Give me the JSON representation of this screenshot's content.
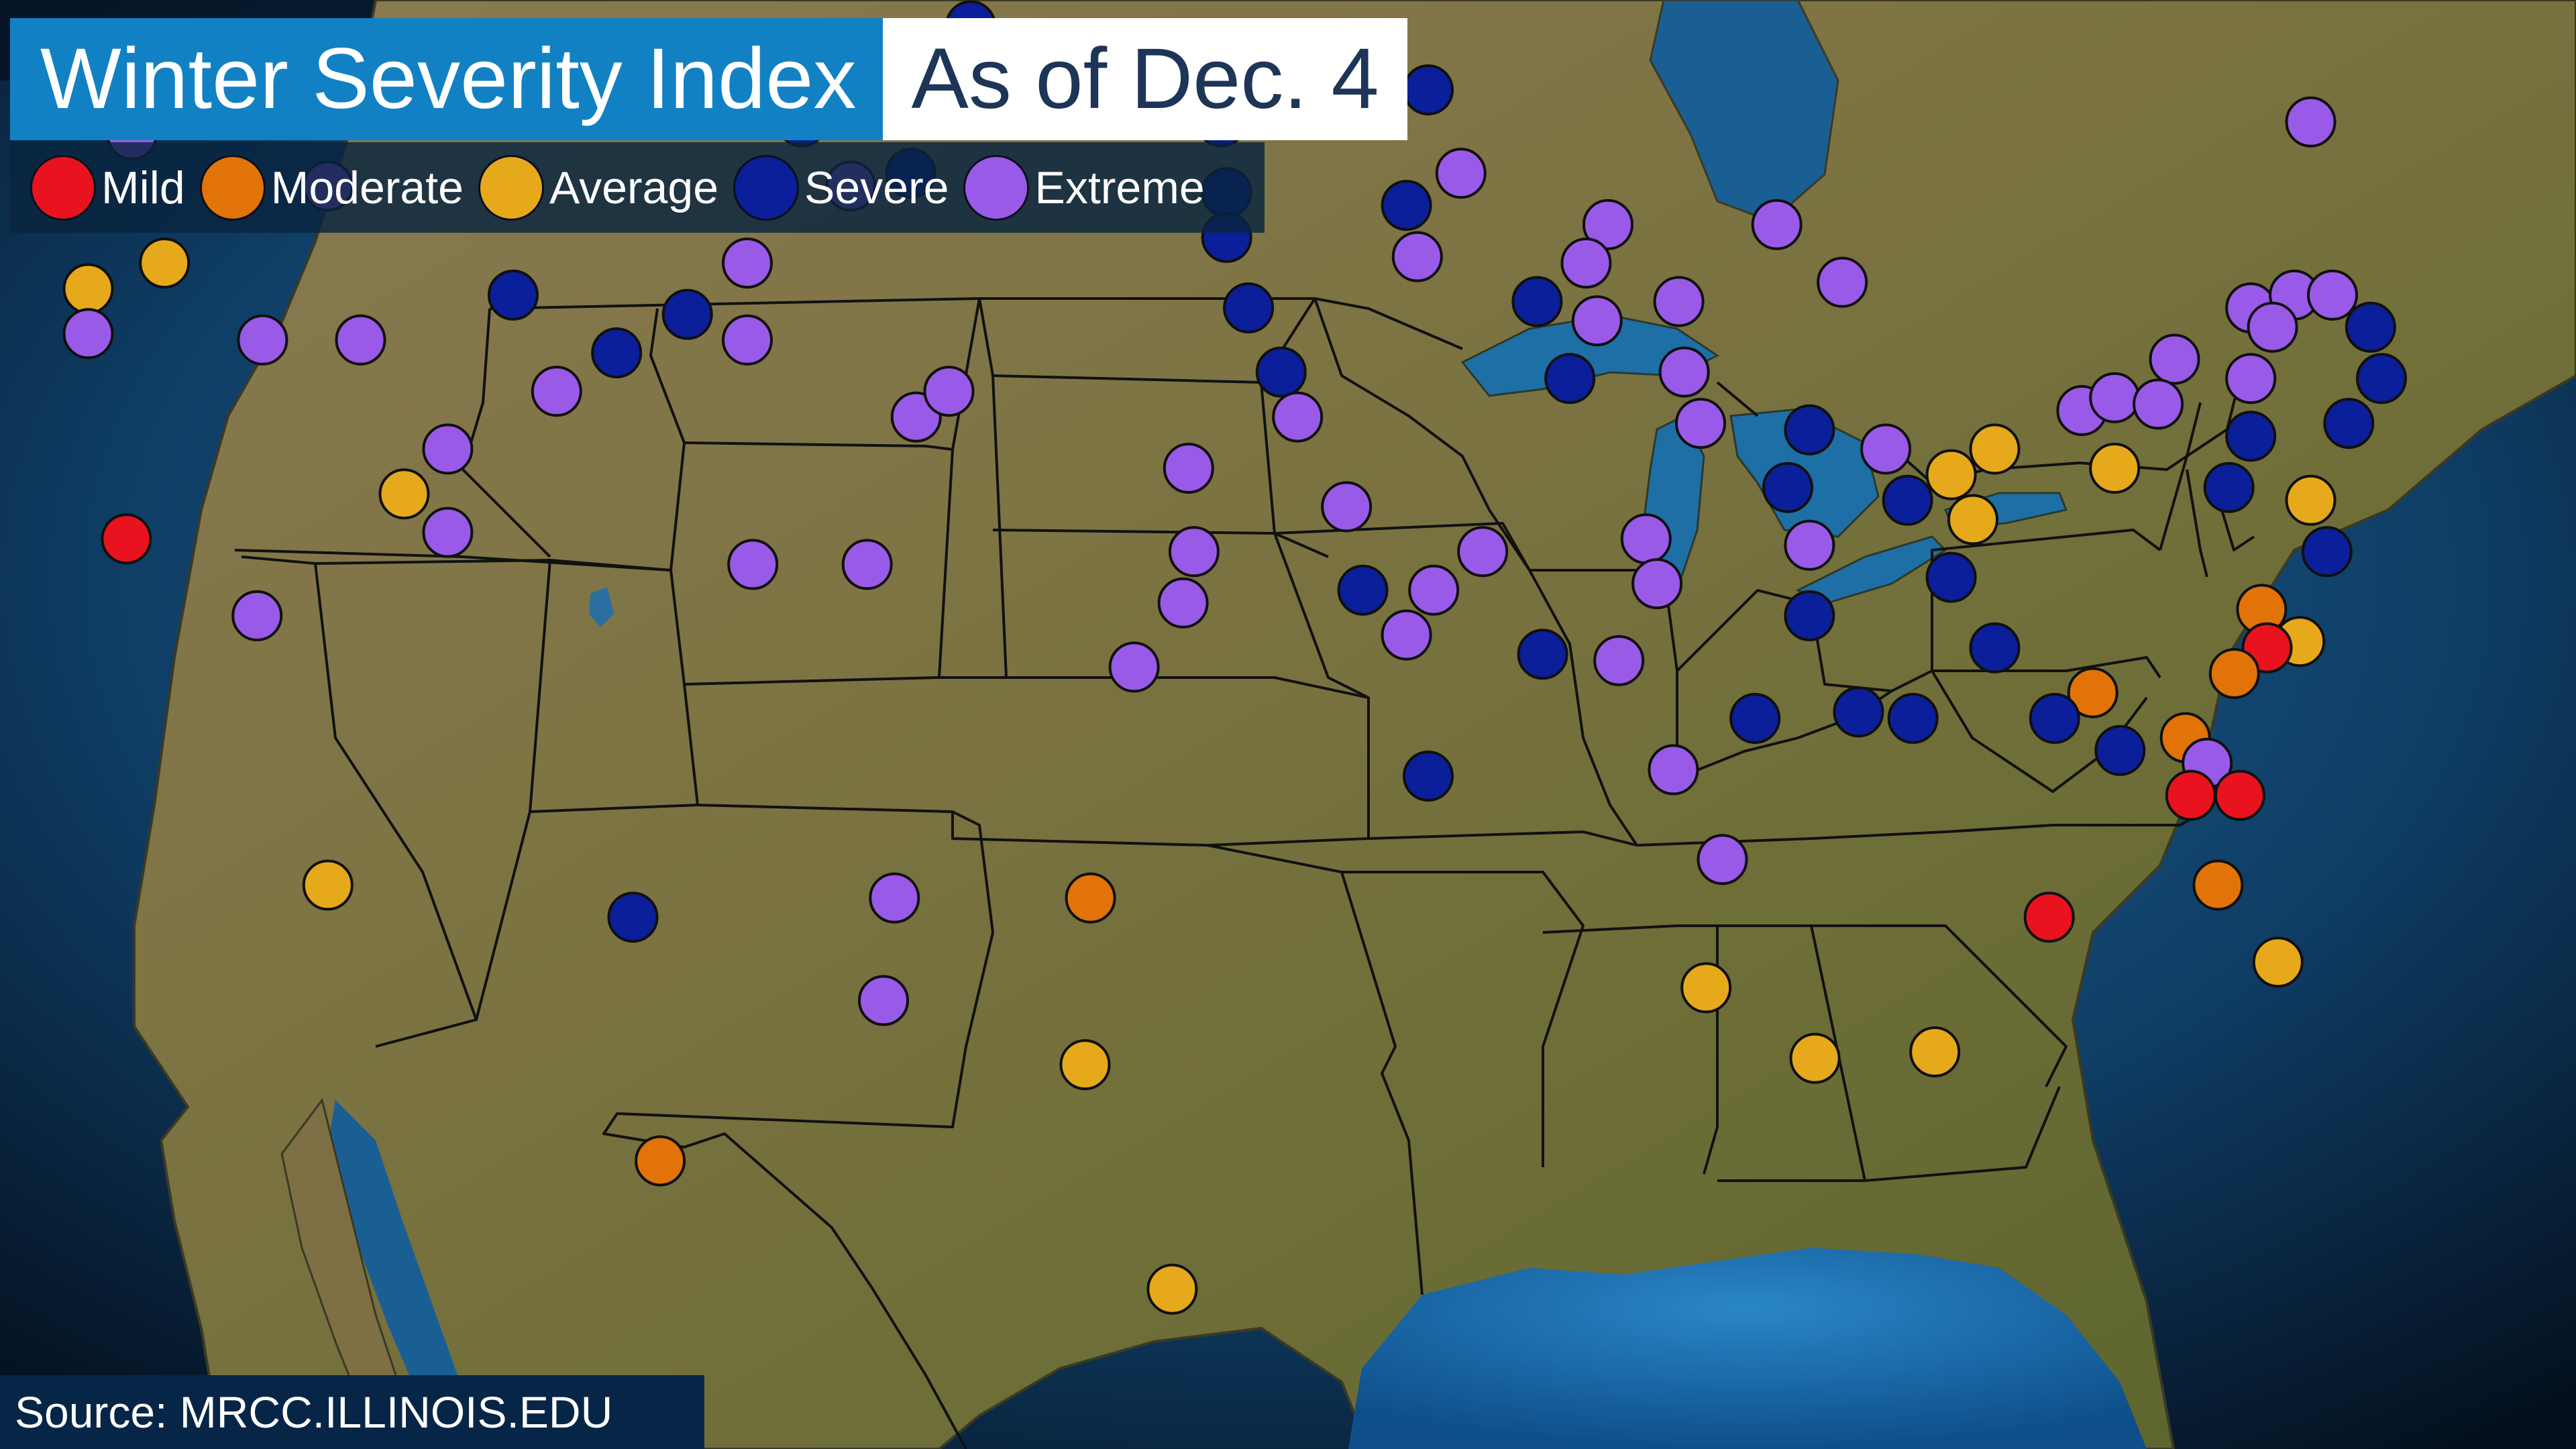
{
  "title": "Winter Severity Index",
  "date_label": "As of Dec. 4",
  "source": "Source: MRCC.ILLINOIS.EDU",
  "categories": [
    {
      "key": "mild",
      "label": "Mild",
      "color": "#e8131f"
    },
    {
      "key": "moderate",
      "label": "Moderate",
      "color": "#e27308"
    },
    {
      "key": "average",
      "label": "Average",
      "color": "#e6a91c"
    },
    {
      "key": "severe",
      "label": "Severe",
      "color": "#0b1f9a"
    },
    {
      "key": "extreme",
      "label": "Extreme",
      "color": "#9a5ae8"
    }
  ],
  "stations": [
    {
      "lon": -122.5,
      "lat": 48.6,
      "severity": "average"
    },
    {
      "lon": -123.1,
      "lat": 47.8,
      "severity": "average"
    },
    {
      "lon": -122.6,
      "lat": 47.4,
      "severity": "moderate"
    },
    {
      "lon": -121.8,
      "lat": 47.0,
      "severity": "average"
    },
    {
      "lon": -121.9,
      "lat": 46.8,
      "severity": "severe"
    },
    {
      "lon": -123.7,
      "lat": 46.2,
      "severity": "severe"
    },
    {
      "lon": -119.8,
      "lat": 48.0,
      "severity": "extreme"
    },
    {
      "lon": -119.5,
      "lat": 45.1,
      "severity": "severe"
    },
    {
      "lon": -117.4,
      "lat": 44.9,
      "severity": "average"
    },
    {
      "lon": -117.4,
      "lat": 44.2,
      "severity": "extreme"
    },
    {
      "lon": -116.0,
      "lat": 45.3,
      "severity": "average"
    },
    {
      "lon": -116.6,
      "lat": 47.3,
      "severity": "extreme"
    },
    {
      "lon": -114.0,
      "lat": 48.3,
      "severity": "extreme"
    },
    {
      "lon": -113.0,
      "lat": 46.5,
      "severity": "extreme"
    },
    {
      "lon": -109.8,
      "lat": 48.6,
      "severity": "severe"
    },
    {
      "lon": -114.2,
      "lat": 44.1,
      "severity": "extreme"
    },
    {
      "lon": -112.4,
      "lat": 44.1,
      "severity": "extreme"
    },
    {
      "lon": -109.6,
      "lat": 44.8,
      "severity": "severe"
    },
    {
      "lon": -108.8,
      "lat": 43.3,
      "severity": "extreme"
    },
    {
      "lon": -110.8,
      "lat": 42.4,
      "severity": "extreme"
    },
    {
      "lon": -110.8,
      "lat": 41.1,
      "severity": "extreme"
    },
    {
      "lon": -111.6,
      "lat": 41.7,
      "severity": "average"
    },
    {
      "lon": -116.7,
      "lat": 41.0,
      "severity": "mild"
    },
    {
      "lon": -121.2,
      "lat": 40.3,
      "severity": "average"
    },
    {
      "lon": -114.3,
      "lat": 39.8,
      "severity": "extreme"
    },
    {
      "lon": -107.7,
      "lat": 43.9,
      "severity": "severe"
    },
    {
      "lon": -106.4,
      "lat": 44.5,
      "severity": "severe"
    },
    {
      "lon": -104.3,
      "lat": 47.5,
      "severity": "severe"
    },
    {
      "lon": -103.4,
      "lat": 46.5,
      "severity": "extreme"
    },
    {
      "lon": -105.3,
      "lat": 45.3,
      "severity": "extreme"
    },
    {
      "lon": -105.3,
      "lat": 44.1,
      "severity": "extreme"
    },
    {
      "lon": -102.3,
      "lat": 46.7,
      "severity": "severe"
    },
    {
      "lon": -101.2,
      "lat": 49.0,
      "severity": "severe"
    },
    {
      "lon": -101.0,
      "lat": 48.3,
      "severity": "severe"
    },
    {
      "lon": -102.2,
      "lat": 42.9,
      "severity": "extreme"
    },
    {
      "lon": -101.6,
      "lat": 43.3,
      "severity": "extreme"
    },
    {
      "lon": -105.2,
      "lat": 40.6,
      "severity": "extreme"
    },
    {
      "lon": -103.1,
      "lat": 40.6,
      "severity": "extreme"
    },
    {
      "lon": -97.2,
      "lat": 42.1,
      "severity": "extreme"
    },
    {
      "lon": -97.1,
      "lat": 40.8,
      "severity": "extreme"
    },
    {
      "lon": -97.3,
      "lat": 40.0,
      "severity": "extreme"
    },
    {
      "lon": -98.2,
      "lat": 39.0,
      "severity": "extreme"
    },
    {
      "lon": -96.6,
      "lat": 47.5,
      "severity": "severe"
    },
    {
      "lon": -96.5,
      "lat": 46.4,
      "severity": "severe"
    },
    {
      "lon": -96.5,
      "lat": 45.7,
      "severity": "severe"
    },
    {
      "lon": -96.1,
      "lat": 44.6,
      "severity": "severe"
    },
    {
      "lon": -95.5,
      "lat": 43.6,
      "severity": "severe"
    },
    {
      "lon": -95.2,
      "lat": 42.9,
      "severity": "extreme"
    },
    {
      "lon": -94.3,
      "lat": 41.5,
      "severity": "extreme"
    },
    {
      "lon": -94.0,
      "lat": 40.2,
      "severity": "severe"
    },
    {
      "lon": -92.8,
      "lat": 48.0,
      "severity": "severe"
    },
    {
      "lon": -93.2,
      "lat": 46.2,
      "severity": "severe"
    },
    {
      "lon": -93.0,
      "lat": 45.4,
      "severity": "extreme"
    },
    {
      "lon": -92.2,
      "lat": 46.7,
      "severity": "extreme"
    },
    {
      "lon": -90.8,
      "lat": 44.7,
      "severity": "severe"
    },
    {
      "lon": -90.2,
      "lat": 43.5,
      "severity": "severe"
    },
    {
      "lon": -89.5,
      "lat": 45.9,
      "severity": "extreme"
    },
    {
      "lon": -89.9,
      "lat": 45.3,
      "severity": "extreme"
    },
    {
      "lon": -89.7,
      "lat": 44.4,
      "severity": "extreme"
    },
    {
      "lon": -88.2,
      "lat": 44.7,
      "severity": "extreme"
    },
    {
      "lon": -88.1,
      "lat": 43.6,
      "severity": "extreme"
    },
    {
      "lon": -87.8,
      "lat": 42.8,
      "severity": "extreme"
    },
    {
      "lon": -86.4,
      "lat": 45.9,
      "severity": "extreme"
    },
    {
      "lon": -85.2,
      "lat": 45.0,
      "severity": "extreme"
    },
    {
      "lon": -85.8,
      "lat": 42.7,
      "severity": "severe"
    },
    {
      "lon": -86.2,
      "lat": 41.8,
      "severity": "severe"
    },
    {
      "lon": -85.8,
      "lat": 40.9,
      "severity": "extreme"
    },
    {
      "lon": -84.4,
      "lat": 42.4,
      "severity": "extreme"
    },
    {
      "lon": -84.0,
      "lat": 41.6,
      "severity": "severe"
    },
    {
      "lon": -88.8,
      "lat": 41.0,
      "severity": "extreme"
    },
    {
      "lon": -88.6,
      "lat": 40.3,
      "severity": "extreme"
    },
    {
      "lon": -89.3,
      "lat": 39.1,
      "severity": "extreme"
    },
    {
      "lon": -90.7,
      "lat": 39.2,
      "severity": "severe"
    },
    {
      "lon": -85.8,
      "lat": 39.8,
      "severity": "severe"
    },
    {
      "lon": -86.8,
      "lat": 38.2,
      "severity": "severe"
    },
    {
      "lon": -84.9,
      "lat": 38.3,
      "severity": "severe"
    },
    {
      "lon": -83.9,
      "lat": 38.2,
      "severity": "severe"
    },
    {
      "lon": -88.3,
      "lat": 37.4,
      "severity": "extreme"
    },
    {
      "lon": -87.4,
      "lat": 36.0,
      "severity": "extreme"
    },
    {
      "lon": -92.8,
      "lat": 37.3,
      "severity": "severe"
    },
    {
      "lon": -93.2,
      "lat": 39.5,
      "severity": "extreme"
    },
    {
      "lon": -92.7,
      "lat": 40.2,
      "severity": "extreme"
    },
    {
      "lon": -91.8,
      "lat": 40.8,
      "severity": "extreme"
    },
    {
      "lon": -83.2,
      "lat": 42.0,
      "severity": "average"
    },
    {
      "lon": -82.4,
      "lat": 42.4,
      "severity": "average"
    },
    {
      "lon": -82.8,
      "lat": 41.3,
      "severity": "average"
    },
    {
      "lon": -83.2,
      "lat": 40.4,
      "severity": "severe"
    },
    {
      "lon": -80.8,
      "lat": 43.0,
      "severity": "extreme"
    },
    {
      "lon": -80.2,
      "lat": 43.2,
      "severity": "extreme"
    },
    {
      "lon": -79.1,
      "lat": 43.8,
      "severity": "extreme"
    },
    {
      "lon": -79.4,
      "lat": 43.1,
      "severity": "extreme"
    },
    {
      "lon": -77.7,
      "lat": 44.6,
      "severity": "extreme"
    },
    {
      "lon": -76.9,
      "lat": 44.8,
      "severity": "extreme"
    },
    {
      "lon": -77.3,
      "lat": 44.3,
      "severity": "extreme"
    },
    {
      "lon": -77.7,
      "lat": 43.5,
      "severity": "extreme"
    },
    {
      "lon": -76.2,
      "lat": 44.8,
      "severity": "extreme"
    },
    {
      "lon": -76.6,
      "lat": 47.5,
      "severity": "extreme"
    },
    {
      "lon": -77.7,
      "lat": 42.6,
      "severity": "severe"
    },
    {
      "lon": -78.1,
      "lat": 41.8,
      "severity": "severe"
    },
    {
      "lon": -75.5,
      "lat": 44.3,
      "severity": "severe"
    },
    {
      "lon": -75.3,
      "lat": 43.5,
      "severity": "severe"
    },
    {
      "lon": -75.9,
      "lat": 42.8,
      "severity": "severe"
    },
    {
      "lon": -76.6,
      "lat": 41.6,
      "severity": "average"
    },
    {
      "lon": -76.3,
      "lat": 40.8,
      "severity": "severe"
    },
    {
      "lon": -80.2,
      "lat": 42.1,
      "severity": "average"
    },
    {
      "lon": -82.4,
      "lat": 39.3,
      "severity": "severe"
    },
    {
      "lon": -77.5,
      "lat": 39.9,
      "severity": "moderate"
    },
    {
      "lon": -76.8,
      "lat": 39.4,
      "severity": "average"
    },
    {
      "lon": -77.4,
      "lat": 39.3,
      "severity": "mild"
    },
    {
      "lon": -78.0,
      "lat": 38.9,
      "severity": "moderate"
    },
    {
      "lon": -80.6,
      "lat": 38.6,
      "severity": "moderate"
    },
    {
      "lon": -81.3,
      "lat": 38.2,
      "severity": "severe"
    },
    {
      "lon": -80.1,
      "lat": 37.7,
      "severity": "severe"
    },
    {
      "lon": -78.9,
      "lat": 37.9,
      "severity": "moderate"
    },
    {
      "lon": -78.5,
      "lat": 37.5,
      "severity": "extreme"
    },
    {
      "lon": -78.8,
      "lat": 37.0,
      "severity": "mild"
    },
    {
      "lon": -77.9,
      "lat": 37.0,
      "severity": "mild"
    },
    {
      "lon": -78.3,
      "lat": 35.6,
      "severity": "moderate"
    },
    {
      "lon": -81.4,
      "lat": 35.1,
      "severity": "mild"
    },
    {
      "lon": -77.2,
      "lat": 34.4,
      "severity": "average"
    },
    {
      "lon": -87.7,
      "lat": 34.0,
      "severity": "average"
    },
    {
      "lon": -85.7,
      "lat": 32.9,
      "severity": "average"
    },
    {
      "lon": -83.5,
      "lat": 33.0,
      "severity": "average"
    },
    {
      "lon": -99.0,
      "lat": 35.4,
      "severity": "moderate"
    },
    {
      "lon": -102.6,
      "lat": 35.4,
      "severity": "extreme"
    },
    {
      "lon": -102.8,
      "lat": 33.8,
      "severity": "extreme"
    },
    {
      "lon": -99.1,
      "lat": 32.8,
      "severity": "average"
    },
    {
      "lon": -97.5,
      "lat": 29.3,
      "severity": "average"
    },
    {
      "lon": -106.9,
      "lat": 31.3,
      "severity": "moderate"
    },
    {
      "lon": -107.4,
      "lat": 35.1,
      "severity": "severe"
    },
    {
      "lon": -113.0,
      "lat": 35.6,
      "severity": "average"
    }
  ]
}
